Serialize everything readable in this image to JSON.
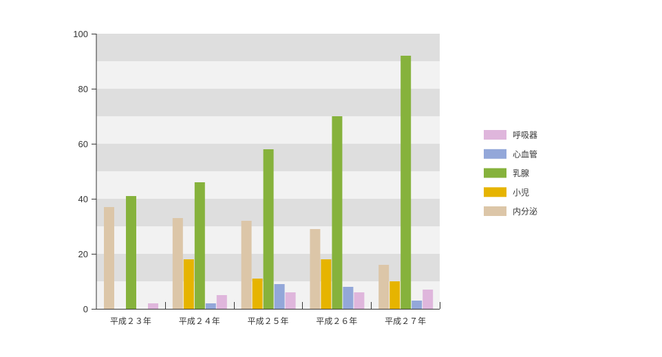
{
  "chart_data": {
    "type": "bar",
    "title": "",
    "xlabel": "",
    "ylabel": "",
    "categories": [
      "平成２３年",
      "平成２４年",
      "平成２５年",
      "平成２６年",
      "平成２７年"
    ],
    "series": [
      {
        "name": "内分泌",
        "color": "#dcc6a8",
        "values": [
          37,
          33,
          32,
          29,
          16
        ]
      },
      {
        "name": "小児",
        "color": "#e6b400",
        "values": [
          0,
          18,
          11,
          18,
          10
        ]
      },
      {
        "name": "乳腺",
        "color": "#86b23c",
        "values": [
          41,
          46,
          58,
          70,
          92
        ]
      },
      {
        "name": "心血管",
        "color": "#93a7d9",
        "values": [
          0,
          2,
          9,
          8,
          3
        ]
      },
      {
        "name": "呼吸器",
        "color": "#dfb6dc",
        "values": [
          2,
          5,
          6,
          6,
          7
        ]
      }
    ],
    "ylim": [
      0,
      100
    ],
    "yticks": [
      0,
      20,
      40,
      60,
      80,
      100
    ],
    "grid": true,
    "band_step": 10,
    "band_colors": [
      "#f2f2f2",
      "#dedede"
    ],
    "axis_color": "#333333",
    "legend": {
      "position": "right",
      "reversed": true
    }
  }
}
